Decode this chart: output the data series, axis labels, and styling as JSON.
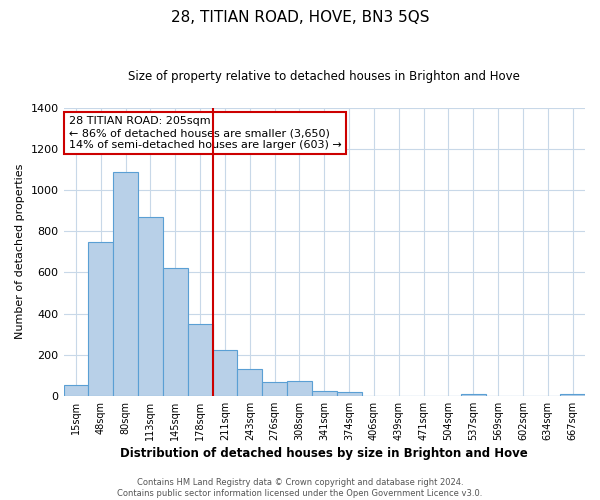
{
  "title": "28, TITIAN ROAD, HOVE, BN3 5QS",
  "subtitle": "Size of property relative to detached houses in Brighton and Hove",
  "xlabel": "Distribution of detached houses by size in Brighton and Hove",
  "ylabel": "Number of detached properties",
  "bar_labels": [
    "15sqm",
    "48sqm",
    "80sqm",
    "113sqm",
    "145sqm",
    "178sqm",
    "211sqm",
    "243sqm",
    "276sqm",
    "308sqm",
    "341sqm",
    "374sqm",
    "406sqm",
    "439sqm",
    "471sqm",
    "504sqm",
    "537sqm",
    "569sqm",
    "602sqm",
    "634sqm",
    "667sqm"
  ],
  "bar_values": [
    55,
    750,
    1090,
    870,
    620,
    350,
    225,
    130,
    65,
    70,
    25,
    18,
    0,
    0,
    0,
    0,
    10,
    0,
    0,
    0,
    10
  ],
  "bar_color": "#b8d0e8",
  "bar_edge_color": "#5a9fd4",
  "vline_index": 6,
  "vline_color": "#cc0000",
  "ylim": [
    0,
    1400
  ],
  "yticks": [
    0,
    200,
    400,
    600,
    800,
    1000,
    1200,
    1400
  ],
  "annotation_title": "28 TITIAN ROAD: 205sqm",
  "annotation_line1": "← 86% of detached houses are smaller (3,650)",
  "annotation_line2": "14% of semi-detached houses are larger (603) →",
  "annotation_box_color": "#ffffff",
  "annotation_box_edge": "#cc0000",
  "footer_line1": "Contains HM Land Registry data © Crown copyright and database right 2024.",
  "footer_line2": "Contains public sector information licensed under the Open Government Licence v3.0.",
  "background_color": "#ffffff",
  "grid_color": "#c8d8e8"
}
